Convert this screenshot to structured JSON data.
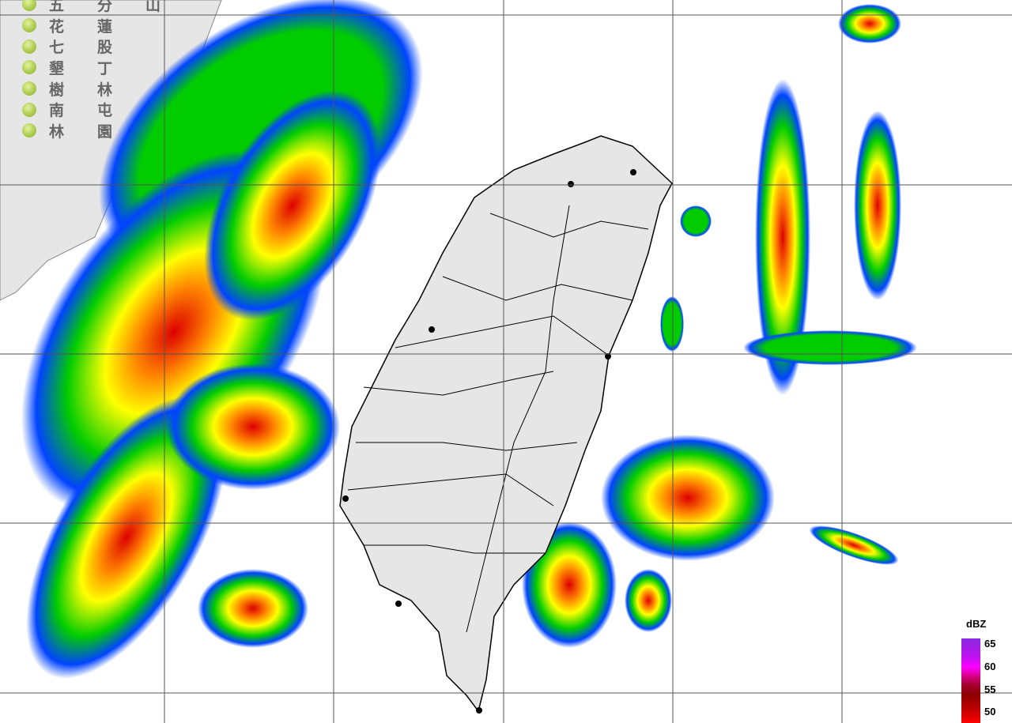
{
  "stations": [
    "五分山",
    "花蓮",
    "七股",
    "墾丁",
    "樹林",
    "南屯",
    "林園"
  ],
  "legend": {
    "unit": "dBZ",
    "ticks": [
      "65",
      "60",
      "55",
      "50"
    ],
    "colors": [
      "#8a2be2",
      "#ff00ff",
      "#a0002a",
      "#8b0000",
      "#ff0000"
    ]
  },
  "colors": {
    "land": "#e6e6e6",
    "grid": "#555555",
    "low": "#0033ff",
    "mid": "#00cc00",
    "high": "#ffff00",
    "heavy": "#ff8800",
    "intense": "#dd0000"
  }
}
